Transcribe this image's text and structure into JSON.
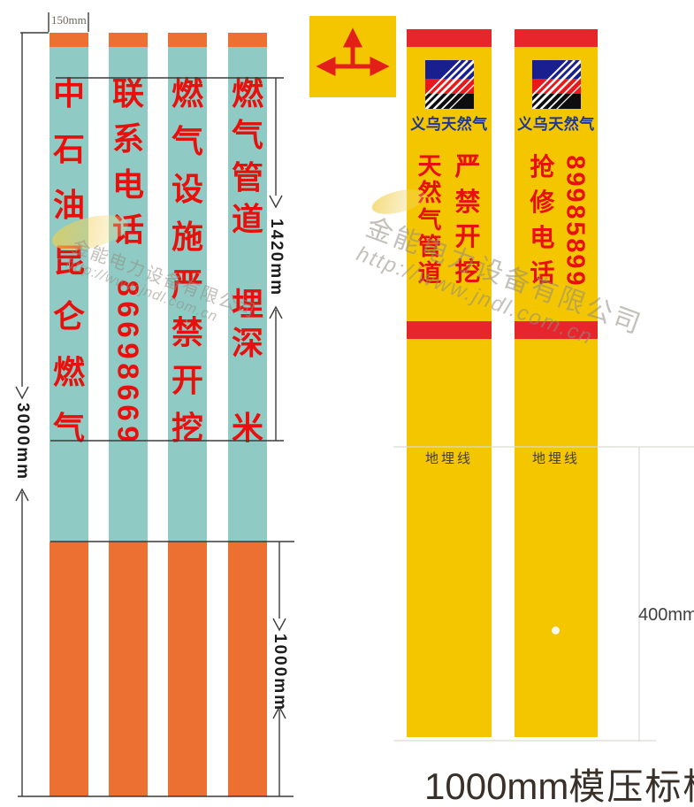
{
  "teal_posts": {
    "post1_text": "中石油昆仑燃气",
    "post2_label": "联系电话",
    "post2_phone": "86698669",
    "post3_text": "燃气设施严禁开挖",
    "post4_line1": "燃气管道",
    "post4_line2": "埋深",
    "post4_line3": "米"
  },
  "yellow_posts": {
    "brand": "义乌天然气",
    "post1_left": "天然气管道",
    "post1_right": "严禁开挖",
    "post2_left": "抢修电话",
    "post2_right": "89985899",
    "ground_label": "地埋线"
  },
  "dims": {
    "post_width": "150mm",
    "overall_height": "3000mm",
    "text_zone_height": "1420mm",
    "buried_depth_left": "1000mm",
    "buried_depth_right": "400mm"
  },
  "caption": {
    "number": "1000mm",
    "label": "模压标桩"
  },
  "watermark": {
    "company": "金能电力设备有限公司",
    "url": "http://www.jndl.com.cn"
  },
  "colors": {
    "teal": "#8FCBC4",
    "orange": "#EC7031",
    "yellow": "#F3C600",
    "stripe_red": "#E8252A",
    "text_red": "#E8100C",
    "navy": "#1F3796",
    "line_dark": "#3b3b39",
    "line_faint": "#d9d9d4"
  }
}
